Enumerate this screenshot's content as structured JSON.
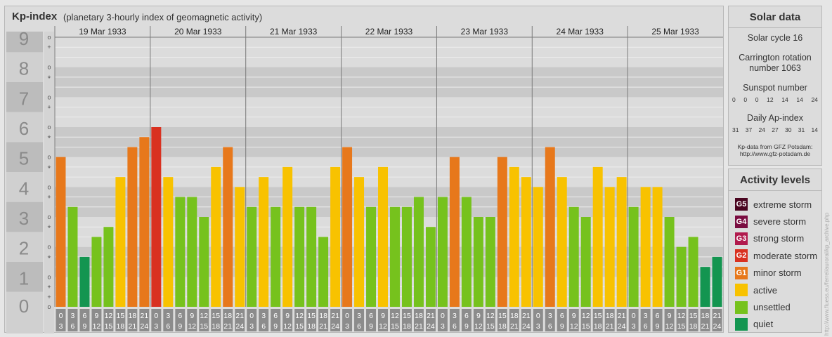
{
  "header": {
    "title": "Kp-index",
    "subtitle": "(planetary 3-hourly index of geomagnetic activity)"
  },
  "chart_data": {
    "type": "bar",
    "title": "Kp-index",
    "subtitle": "(planetary 3-hourly index of geomagnetic activity)",
    "ylim": [
      0,
      9
    ],
    "y_ticks": [
      "0",
      "1",
      "2",
      "3",
      "4",
      "5",
      "6",
      "7",
      "8",
      "9"
    ],
    "minor_y_labels": [
      "+",
      "o",
      "-"
    ],
    "days": [
      "19 Mar 1933",
      "20 Mar 1933",
      "21 Mar 1933",
      "22 Mar 1933",
      "23 Mar 1933",
      "24 Mar 1933",
      "25 Mar 1933"
    ],
    "interval_start": [
      "0",
      "3",
      "6",
      "9",
      "12",
      "15",
      "18",
      "21"
    ],
    "interval_end": [
      "3",
      "6",
      "9",
      "12",
      "15",
      "18",
      "21",
      "24"
    ],
    "values": [
      5.0,
      3.333,
      1.667,
      2.333,
      2.667,
      4.333,
      5.333,
      5.667,
      6.0,
      4.333,
      3.667,
      3.667,
      3.0,
      4.667,
      5.333,
      4.0,
      3.333,
      4.333,
      3.333,
      4.667,
      3.333,
      3.333,
      2.333,
      4.667,
      5.333,
      4.333,
      3.333,
      4.667,
      3.333,
      3.333,
      3.667,
      2.667,
      3.667,
      5.0,
      3.667,
      3.0,
      3.0,
      5.0,
      4.667,
      4.333,
      4.0,
      5.333,
      4.333,
      3.333,
      3.0,
      4.667,
      4.0,
      4.333,
      3.333,
      4.0,
      4.0,
      3.0,
      2.0,
      2.333,
      1.333,
      1.667
    ],
    "colors": {
      "quiet": "#139550",
      "unsettled": "#76c21d",
      "active": "#f8c200",
      "G1": "#e7781b",
      "G2": "#d93120",
      "G3": "#b11a4d",
      "G4": "#7a0c40",
      "G5": "#4a0520"
    },
    "grid": true
  },
  "solar": {
    "heading": "Solar data",
    "cycle": "Solar cycle 16",
    "carrington_1": "Carrington rotation",
    "carrington_2": "number 1063",
    "sunspot_label": "Sunspot number",
    "sunspot": [
      "0",
      "0",
      "0",
      "12",
      "14",
      "14",
      "24"
    ],
    "ap_label": "Daily Ap-index",
    "ap": [
      "31",
      "37",
      "24",
      "27",
      "30",
      "31",
      "14"
    ],
    "source_1": "Kp-data from GFZ Potsdam:",
    "source_2": "http://www.gfz-potsdam.de"
  },
  "activity": {
    "heading": "Activity levels",
    "levels": [
      {
        "badge": "G5",
        "label": "extreme storm",
        "color": "#4a0520"
      },
      {
        "badge": "G4",
        "label": "severe storm",
        "color": "#7a0c40"
      },
      {
        "badge": "G3",
        "label": "strong storm",
        "color": "#b11a4d"
      },
      {
        "badge": "G2",
        "label": "moderate storm",
        "color": "#d93120"
      },
      {
        "badge": "G1",
        "label": "minor storm",
        "color": "#e7781b"
      },
      {
        "badge": "",
        "label": "active",
        "color": "#f8c200"
      },
      {
        "badge": "",
        "label": "unsettled",
        "color": "#76c21d"
      },
      {
        "badge": "",
        "label": "quiet",
        "color": "#139550"
      }
    ]
  },
  "watermark": "http://www.fluess.eu/ferrel/auroral/kp_archive.php"
}
